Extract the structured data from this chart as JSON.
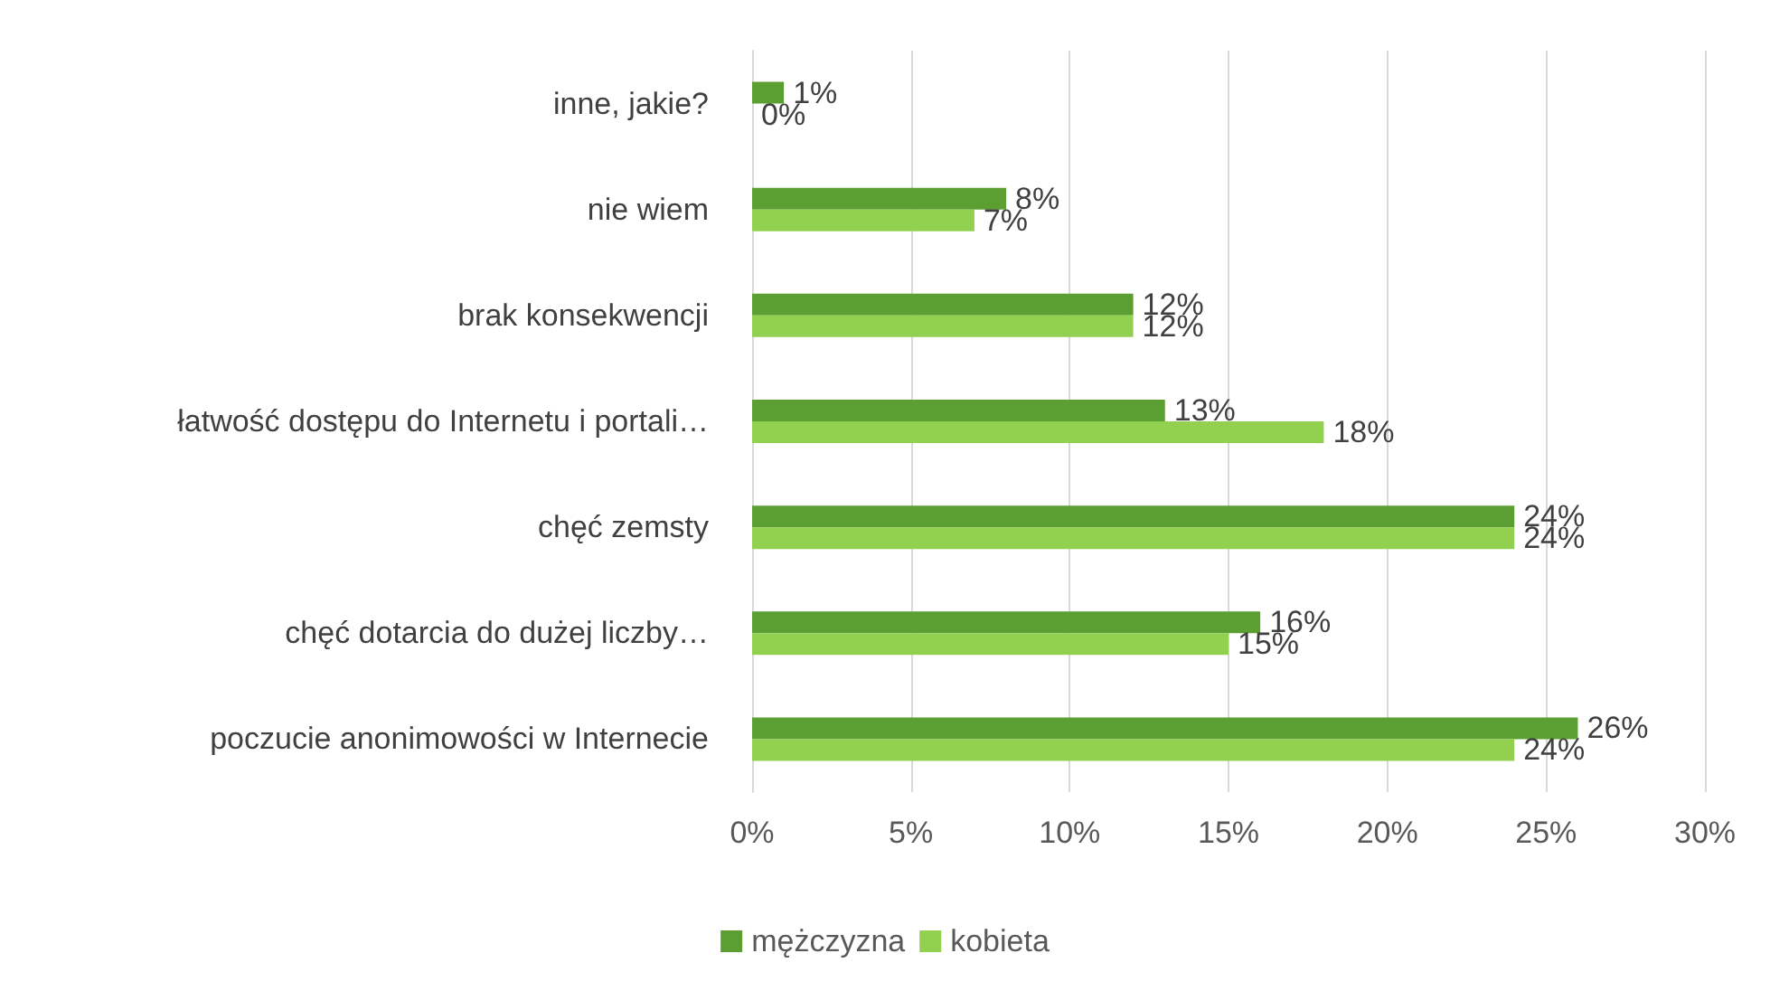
{
  "chart_data": {
    "type": "bar",
    "orientation": "horizontal",
    "categories": [
      "inne, jakie?",
      "nie wiem",
      "brak konsekwencji",
      "łatwość dostępu do Internetu i portali…",
      "chęć zemsty",
      "chęć dotarcia do dużej liczby…",
      "poczucie anonimowości w Internecie"
    ],
    "series": [
      {
        "name": "mężczyzna",
        "color": "#5b9f32",
        "values": [
          1,
          8,
          12,
          13,
          24,
          16,
          26
        ],
        "value_labels": [
          "1%",
          "8%",
          "12%",
          "13%",
          "24%",
          "16%",
          "26%"
        ]
      },
      {
        "name": "kobieta",
        "color": "#92d050",
        "values": [
          0,
          7,
          12,
          18,
          24,
          15,
          24
        ],
        "value_labels": [
          "0%",
          "7%",
          "12%",
          "18%",
          "24%",
          "15%",
          "24%"
        ]
      }
    ],
    "xlim": [
      0,
      30
    ],
    "xticks": [
      {
        "value": 0,
        "label": "0%"
      },
      {
        "value": 5,
        "label": "5%"
      },
      {
        "value": 10,
        "label": "10%"
      },
      {
        "value": 15,
        "label": "15%"
      },
      {
        "value": 20,
        "label": "20%"
      },
      {
        "value": 25,
        "label": "25%"
      },
      {
        "value": 30,
        "label": "30%"
      }
    ],
    "grid": "x",
    "legend": "bottom"
  }
}
